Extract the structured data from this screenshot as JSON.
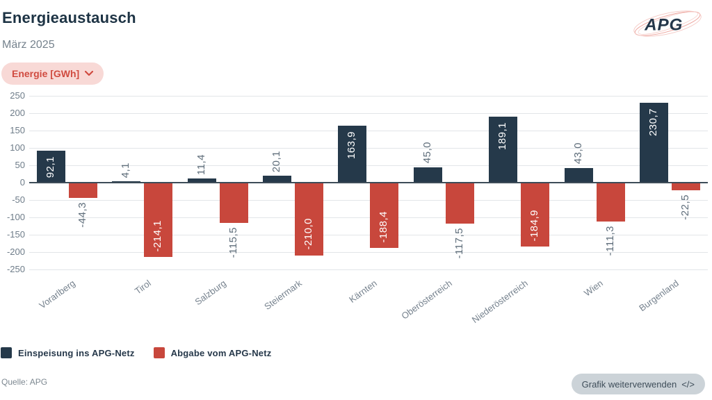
{
  "header": {
    "title": "Energieaustausch",
    "subtitle": "März 2025",
    "unit_selector": {
      "label": "Energie [GWh]"
    },
    "logo_text": "APG"
  },
  "colors": {
    "einspeisung": "#25394a",
    "abgabe": "#c8473c",
    "accent_red": "#d04b40",
    "pill_bg": "#f8d9d6"
  },
  "chart_data": {
    "type": "bar",
    "unit": "GWh",
    "title": "Energieaustausch",
    "subtitle": "März 2025",
    "categories": [
      "Vorarlberg",
      "Tirol",
      "Salzburg",
      "Steiermark",
      "Kärnten",
      "Oberösterreich",
      "Niederösterreich",
      "Wien",
      "Burgenland"
    ],
    "series": [
      {
        "name": "Einspeisung ins APG-Netz",
        "color": "#25394a",
        "values": [
          92.1,
          4.1,
          11.4,
          20.1,
          163.9,
          45.0,
          189.1,
          43.0,
          230.7
        ],
        "labels": [
          "92,1",
          "4,1",
          "11,4",
          "20,1",
          "163,9",
          "45,0",
          "189,1",
          "43,0",
          "230,7"
        ],
        "label_inside": [
          true,
          false,
          false,
          false,
          true,
          false,
          true,
          false,
          true
        ]
      },
      {
        "name": "Abgabe vom APG-Netz",
        "color": "#c8473c",
        "values": [
          -44.3,
          -214.1,
          -115.5,
          -210.0,
          -188.4,
          -117.5,
          -184.9,
          -111.3,
          -22.5
        ],
        "labels": [
          "-44,3",
          "-214,1",
          "-115,5",
          "-210,0",
          "-188,4",
          "-117,5",
          "-184,9",
          "-111,3",
          "-22,5"
        ],
        "label_inside": [
          false,
          true,
          false,
          true,
          true,
          false,
          true,
          false,
          false
        ]
      }
    ],
    "ylim": [
      -250,
      250
    ],
    "yticks": [
      250,
      200,
      150,
      100,
      50,
      0,
      -50,
      -100,
      -150,
      -200,
      -250
    ],
    "grid": true,
    "legend_position": "bottom"
  },
  "footer": {
    "source": "Quelle: APG",
    "reuse_button": {
      "label": "Grafik weiterverwenden",
      "icon": "</>"
    }
  }
}
